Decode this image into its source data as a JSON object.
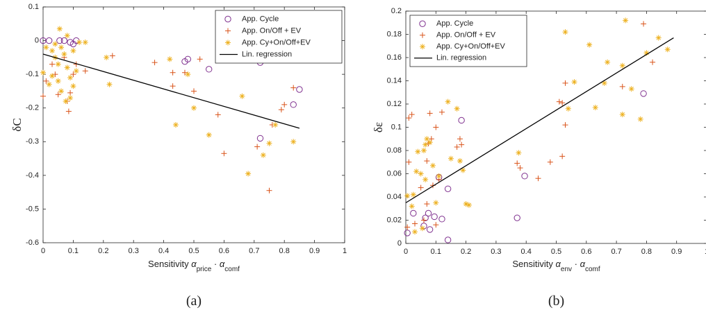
{
  "chart_data": [
    {
      "type": "scatter",
      "caption": "(a)",
      "ylabel": "δC",
      "xlabel_prefix": "Sensitivity ",
      "xlabel_sym1": "α",
      "xlabel_sub1": "price",
      "xlabel_dot": " · ",
      "xlabel_sym2": "α",
      "xlabel_sub2": "comf",
      "xlim": [
        0,
        1
      ],
      "ylim": [
        -0.6,
        0.1
      ],
      "xticks": [
        0,
        0.1,
        0.2,
        0.3,
        0.4,
        0.5,
        0.6,
        0.7,
        0.8,
        0.9,
        1
      ],
      "xtick_labels": [
        "0",
        "0.1",
        "0.2",
        "0.3",
        "0.4",
        "0.5",
        "0.6",
        "0.7",
        "0.8",
        "0.9",
        "1"
      ],
      "yticks": [
        -0.6,
        -0.5,
        -0.4,
        -0.3,
        -0.2,
        -0.1,
        0,
        0.1
      ],
      "ytick_labels": [
        "-0.6",
        "-0.5",
        "-0.4",
        "-0.3",
        "-0.2",
        "-0.1",
        "0",
        "0.1"
      ],
      "legend_position": "top-right",
      "series": [
        {
          "name": "App. Cycle",
          "marker": "circle",
          "color": "#7e2f8e",
          "points": [
            [
              0.0,
              0.0
            ],
            [
              0.02,
              0.0
            ],
            [
              0.055,
              0.0
            ],
            [
              0.07,
              0.0
            ],
            [
              0.09,
              -0.005
            ],
            [
              0.1,
              -0.01
            ],
            [
              0.11,
              0.0
            ],
            [
              0.47,
              -0.062
            ],
            [
              0.48,
              -0.055
            ],
            [
              0.55,
              -0.085
            ],
            [
              0.72,
              -0.065
            ],
            [
              0.72,
              -0.29
            ],
            [
              0.83,
              -0.19
            ],
            [
              0.85,
              -0.145
            ]
          ]
        },
        {
          "name": "App. On/Off + EV",
          "marker": "plus",
          "color": "#d95319",
          "points": [
            [
              0.0,
              -0.165
            ],
            [
              0.01,
              -0.12
            ],
            [
              0.03,
              -0.07
            ],
            [
              0.04,
              -0.1
            ],
            [
              0.05,
              -0.16
            ],
            [
              0.07,
              -0.05
            ],
            [
              0.08,
              -0.18
            ],
            [
              0.085,
              -0.21
            ],
            [
              0.09,
              -0.155
            ],
            [
              0.1,
              -0.1
            ],
            [
              0.11,
              -0.07
            ],
            [
              0.14,
              -0.09
            ],
            [
              0.23,
              -0.045
            ],
            [
              0.37,
              -0.065
            ],
            [
              0.43,
              -0.135
            ],
            [
              0.43,
              -0.095
            ],
            [
              0.47,
              -0.095
            ],
            [
              0.5,
              -0.15
            ],
            [
              0.52,
              -0.055
            ],
            [
              0.58,
              -0.22
            ],
            [
              0.6,
              -0.335
            ],
            [
              0.71,
              -0.315
            ],
            [
              0.75,
              -0.445
            ],
            [
              0.76,
              -0.25
            ],
            [
              0.79,
              -0.205
            ],
            [
              0.8,
              -0.19
            ],
            [
              0.83,
              -0.14
            ]
          ]
        },
        {
          "name": "App. Cy+On/Off+EV",
          "marker": "asterisk",
          "color": "#edb120",
          "points": [
            [
              0.0,
              -0.095
            ],
            [
              0.01,
              -0.02
            ],
            [
              0.02,
              -0.13
            ],
            [
              0.03,
              -0.03
            ],
            [
              0.03,
              -0.105
            ],
            [
              0.04,
              -0.01
            ],
            [
              0.04,
              -0.05
            ],
            [
              0.05,
              -0.07
            ],
            [
              0.05,
              -0.12
            ],
            [
              0.055,
              0.035
            ],
            [
              0.06,
              -0.02
            ],
            [
              0.06,
              -0.15
            ],
            [
              0.07,
              -0.04
            ],
            [
              0.075,
              -0.18
            ],
            [
              0.08,
              0.015
            ],
            [
              0.08,
              -0.08
            ],
            [
              0.09,
              -0.11
            ],
            [
              0.09,
              -0.17
            ],
            [
              0.1,
              -0.03
            ],
            [
              0.1,
              -0.135
            ],
            [
              0.11,
              -0.09
            ],
            [
              0.12,
              -0.005
            ],
            [
              0.14,
              -0.005
            ],
            [
              0.21,
              -0.05
            ],
            [
              0.22,
              -0.13
            ],
            [
              0.42,
              -0.055
            ],
            [
              0.44,
              -0.25
            ],
            [
              0.48,
              -0.1
            ],
            [
              0.5,
              -0.2
            ],
            [
              0.55,
              -0.28
            ],
            [
              0.66,
              -0.165
            ],
            [
              0.68,
              -0.395
            ],
            [
              0.73,
              -0.34
            ],
            [
              0.75,
              -0.305
            ],
            [
              0.77,
              -0.25
            ],
            [
              0.83,
              -0.3
            ]
          ]
        },
        {
          "name": "Lin. regression",
          "marker": "line",
          "color": "#000000",
          "line": [
            [
              0,
              -0.04
            ],
            [
              0.85,
              -0.26
            ]
          ]
        }
      ]
    },
    {
      "type": "scatter",
      "caption": "(b)",
      "ylabel": "δε",
      "xlabel_prefix": "Sensitivity ",
      "xlabel_sym1": "α",
      "xlabel_sub1": "env",
      "xlabel_dot": " · ",
      "xlabel_sym2": "α",
      "xlabel_sub2": "comf",
      "xlim": [
        0,
        1
      ],
      "ylim": [
        0,
        0.2
      ],
      "xticks": [
        0,
        0.1,
        0.2,
        0.3,
        0.4,
        0.5,
        0.6,
        0.7,
        0.8,
        0.9,
        1
      ],
      "xtick_labels": [
        "0",
        "0.1",
        "0.2",
        "0.3",
        "0.4",
        "0.5",
        "0.6",
        "0.7",
        "0.8",
        "0.9",
        "1"
      ],
      "yticks": [
        0,
        0.02,
        0.04,
        0.06,
        0.08,
        0.1,
        0.12,
        0.14,
        0.16,
        0.18,
        0.2
      ],
      "ytick_labels": [
        "0",
        "0.02",
        "0.04",
        "0.06",
        "0.08",
        "0.1",
        "0.12",
        "0.14",
        "0.16",
        "0.18",
        "0.2"
      ],
      "legend_position": "top-left",
      "series": [
        {
          "name": "App. Cycle",
          "marker": "circle",
          "color": "#7e2f8e",
          "points": [
            [
              0.005,
              0.009
            ],
            [
              0.025,
              0.026
            ],
            [
              0.06,
              0.015
            ],
            [
              0.065,
              0.022
            ],
            [
              0.075,
              0.026
            ],
            [
              0.08,
              0.012
            ],
            [
              0.095,
              0.023
            ],
            [
              0.11,
              0.057
            ],
            [
              0.12,
              0.021
            ],
            [
              0.14,
              0.047
            ],
            [
              0.14,
              0.003
            ],
            [
              0.185,
              0.106
            ],
            [
              0.37,
              0.022
            ],
            [
              0.395,
              0.058
            ],
            [
              0.79,
              0.129
            ]
          ]
        },
        {
          "name": "App. On/Off + EV",
          "marker": "plus",
          "color": "#d95319",
          "points": [
            [
              0.005,
              0.014
            ],
            [
              0.01,
              0.108
            ],
            [
              0.01,
              0.07
            ],
            [
              0.02,
              0.111
            ],
            [
              0.03,
              0.017
            ],
            [
              0.05,
              0.048
            ],
            [
              0.06,
              0.02
            ],
            [
              0.07,
              0.034
            ],
            [
              0.07,
              0.071
            ],
            [
              0.075,
              0.086
            ],
            [
              0.08,
              0.112
            ],
            [
              0.085,
              0.09
            ],
            [
              0.09,
              0.05
            ],
            [
              0.1,
              0.1
            ],
            [
              0.1,
              0.016
            ],
            [
              0.11,
              0.055
            ],
            [
              0.12,
              0.113
            ],
            [
              0.17,
              0.083
            ],
            [
              0.18,
              0.09
            ],
            [
              0.185,
              0.085
            ],
            [
              0.37,
              0.069
            ],
            [
              0.38,
              0.065
            ],
            [
              0.44,
              0.056
            ],
            [
              0.48,
              0.07
            ],
            [
              0.51,
              0.122
            ],
            [
              0.52,
              0.075
            ],
            [
              0.52,
              0.121
            ],
            [
              0.53,
              0.138
            ],
            [
              0.53,
              0.102
            ],
            [
              0.72,
              0.135
            ],
            [
              0.79,
              0.189
            ],
            [
              0.82,
              0.156
            ]
          ]
        },
        {
          "name": "App. Cy+On/Off+EV",
          "marker": "asterisk",
          "color": "#edb120",
          "points": [
            [
              0.005,
              0.041
            ],
            [
              0.02,
              0.032
            ],
            [
              0.025,
              0.042
            ],
            [
              0.03,
              0.01
            ],
            [
              0.035,
              0.062
            ],
            [
              0.04,
              0.079
            ],
            [
              0.05,
              0.06
            ],
            [
              0.055,
              0.013
            ],
            [
              0.06,
              0.08
            ],
            [
              0.065,
              0.085
            ],
            [
              0.065,
              0.055
            ],
            [
              0.07,
              0.09
            ],
            [
              0.08,
              0.087
            ],
            [
              0.09,
              0.067
            ],
            [
              0.1,
              0.035
            ],
            [
              0.11,
              0.058
            ],
            [
              0.14,
              0.122
            ],
            [
              0.15,
              0.073
            ],
            [
              0.17,
              0.116
            ],
            [
              0.18,
              0.071
            ],
            [
              0.19,
              0.063
            ],
            [
              0.2,
              0.034
            ],
            [
              0.21,
              0.033
            ],
            [
              0.375,
              0.078
            ],
            [
              0.53,
              0.182
            ],
            [
              0.54,
              0.116
            ],
            [
              0.56,
              0.139
            ],
            [
              0.61,
              0.171
            ],
            [
              0.63,
              0.117
            ],
            [
              0.66,
              0.138
            ],
            [
              0.67,
              0.156
            ],
            [
              0.72,
              0.153
            ],
            [
              0.72,
              0.111
            ],
            [
              0.73,
              0.192
            ],
            [
              0.75,
              0.133
            ],
            [
              0.78,
              0.107
            ],
            [
              0.8,
              0.164
            ],
            [
              0.84,
              0.177
            ],
            [
              0.87,
              0.167
            ]
          ]
        },
        {
          "name": "Lin. regression",
          "marker": "line",
          "color": "#000000",
          "line": [
            [
              0,
              0.035
            ],
            [
              0.89,
              0.177
            ]
          ]
        }
      ]
    }
  ]
}
